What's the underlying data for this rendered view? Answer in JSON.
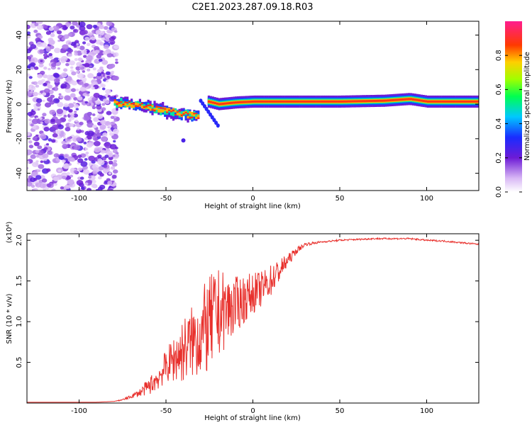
{
  "title": "C2E1.2023.287.09.18.R03",
  "colors": {
    "snr_line": "#e8302c",
    "spectral_background": "#ffffff"
  },
  "chart_data": [
    {
      "type": "heatmap",
      "xlabel": "Height of straight line (km)",
      "ylabel": "Frequency (Hz)",
      "xlim": [
        -130,
        130
      ],
      "ylim": [
        -50,
        48
      ],
      "xticks": [
        -100,
        -50,
        0,
        50,
        100
      ],
      "xtick_labels": [
        "-100",
        "-50",
        "0",
        "50",
        "100"
      ],
      "yticks": [
        -40,
        -20,
        0,
        20,
        40
      ],
      "ytick_labels": [
        "-40",
        "-20",
        "0",
        "20",
        "40"
      ],
      "colormap": "rainbow-pink",
      "colorbar": {
        "label": "Normalized spectral amplitude",
        "range": [
          0,
          1
        ],
        "ticks": [
          0.0,
          0.2,
          0.4,
          0.6,
          0.8
        ],
        "tick_labels": [
          "0.0",
          "0.2",
          "0.4",
          "0.6",
          "0.8"
        ]
      },
      "ridge": {
        "description_points_x": [
          -80,
          -70,
          -60,
          -50,
          -40,
          -30,
          -28,
          -20,
          -10,
          0,
          25,
          50,
          75,
          90,
          100,
          130
        ],
        "description_points_y": [
          1,
          0,
          -2,
          -4,
          -6,
          -7,
          2,
          0,
          1,
          1.5,
          1.5,
          1.5,
          2,
          3,
          1.5,
          1.5
        ]
      }
    },
    {
      "type": "line",
      "xlabel": "Height of straight line (km)",
      "ylabel": "SNR (10 * v/v)",
      "y_multiplier": "(x10⁴)",
      "xlim": [
        -130,
        130
      ],
      "ylim": [
        0,
        2.08
      ],
      "xticks": [
        -100,
        -50,
        0,
        50,
        100
      ],
      "xtick_labels": [
        "-100",
        "-50",
        "0",
        "50",
        "100"
      ],
      "yticks": [
        0.5,
        1.0,
        1.5,
        2.0
      ],
      "ytick_labels": [
        "0.5",
        "1.0",
        "1.5",
        "2.0"
      ],
      "series": [
        {
          "x": [
            -130,
            -110,
            -90,
            -80,
            -75,
            -70,
            -65,
            -60,
            -55,
            -50,
            -45,
            -40,
            -35,
            -30,
            -25,
            -22,
            -20,
            -15,
            -10,
            -5,
            0,
            5,
            10,
            15,
            20,
            25,
            30,
            40,
            50,
            60,
            70,
            80,
            90,
            100,
            110,
            120,
            130
          ],
          "y": [
            0.01,
            0.01,
            0.01,
            0.02,
            0.04,
            0.08,
            0.13,
            0.2,
            0.3,
            0.45,
            0.55,
            0.65,
            0.75,
            0.85,
            0.95,
            1.05,
            1.1,
            1.15,
            1.2,
            1.28,
            1.35,
            1.4,
            1.5,
            1.62,
            1.75,
            1.87,
            1.95,
            1.98,
            2.0,
            2.01,
            2.02,
            2.02,
            2.02,
            2.0,
            1.99,
            1.97,
            1.95
          ],
          "noise": [
            0,
            0,
            0,
            0,
            0.01,
            0.02,
            0.05,
            0.1,
            0.15,
            0.2,
            0.3,
            0.4,
            0.45,
            0.55,
            0.6,
            0.6,
            0.55,
            0.45,
            0.35,
            0.3,
            0.25,
            0.22,
            0.2,
            0.15,
            0.08,
            0.04,
            0.02,
            0.01,
            0.01,
            0.01,
            0.01,
            0.01,
            0.01,
            0.01,
            0.01,
            0.01,
            0.01
          ]
        }
      ]
    }
  ]
}
